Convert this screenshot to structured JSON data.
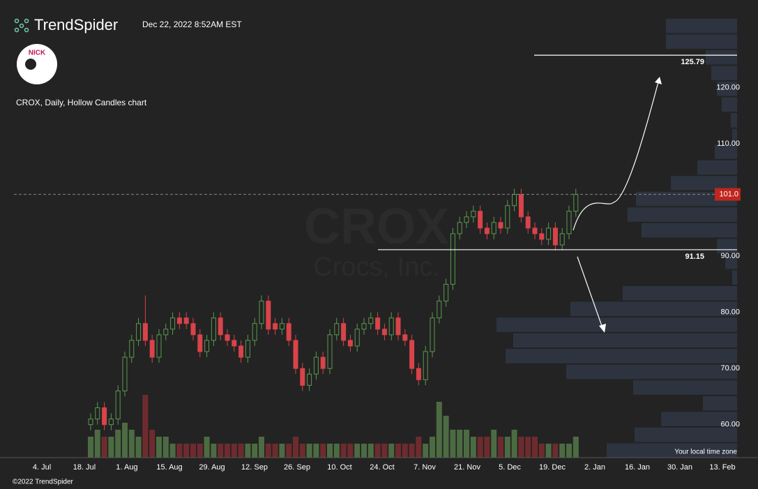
{
  "header": {
    "brand": "TrendSpider",
    "timestamp": "Dec 22, 2022 8:52AM EST",
    "logo_text": "NICK",
    "chart_label": "CROX, Daily, Hollow Candles chart",
    "timezone_note": "Your local time zone",
    "copyright": "©2022 TrendSpider"
  },
  "chart_data": {
    "type": "candlestick",
    "symbol": "CROX",
    "company": "Crocs, Inc.",
    "ylim": [
      54,
      134
    ],
    "yticks": [
      {
        "value": 60,
        "label": "60.00"
      },
      {
        "value": 70,
        "label": "70.00"
      },
      {
        "value": 80,
        "label": "80.00"
      },
      {
        "value": 90,
        "label": "90.00"
      },
      {
        "value": 110,
        "label": "110.00"
      },
      {
        "value": 120,
        "label": "120.00"
      }
    ],
    "date_labels": [
      "4. Jul",
      "18. Jul",
      "1. Aug",
      "15. Aug",
      "29. Aug",
      "12. Sep",
      "26. Sep",
      "10. Oct",
      "24. Oct",
      "7. Nov",
      "21. Nov",
      "5. Dec",
      "19. Dec",
      "2. Jan",
      "16. Jan",
      "30. Jan",
      "13. Feb"
    ],
    "up_color": "#5a9a4e",
    "down_color": "#d9434a",
    "open": [
      60,
      61,
      63,
      60,
      61,
      66,
      72,
      75,
      78,
      75,
      72,
      76,
      77,
      79,
      79,
      78,
      76,
      73,
      75,
      79,
      76,
      75,
      74,
      72,
      75,
      78,
      82,
      78,
      77,
      78,
      75,
      70,
      67,
      69,
      72,
      70,
      76,
      78,
      75,
      74,
      77,
      78,
      79,
      77,
      76,
      79,
      76,
      75,
      70,
      68,
      73,
      79,
      82,
      85,
      94,
      96,
      97,
      98,
      95,
      94,
      96,
      95,
      99,
      101,
      97,
      95,
      94,
      93,
      95,
      92,
      94,
      98
    ],
    "high": [
      62,
      64,
      64,
      62,
      67,
      73,
      76,
      79,
      83,
      76,
      77,
      78,
      80,
      80,
      80,
      79,
      77,
      76,
      80,
      80,
      77,
      76,
      75,
      76,
      79,
      83,
      83,
      79,
      79,
      79,
      76,
      71,
      70,
      73,
      73,
      77,
      79,
      79,
      76,
      78,
      79,
      80,
      80,
      78,
      80,
      80,
      77,
      76,
      71,
      74,
      80,
      83,
      86,
      95,
      97,
      98,
      99,
      99,
      96,
      97,
      97,
      100,
      102,
      102,
      98,
      96,
      95,
      96,
      96,
      95,
      99,
      102
    ],
    "low": [
      59,
      60,
      59,
      59,
      60,
      65,
      71,
      74,
      74,
      71,
      71,
      75,
      76,
      77,
      77,
      75,
      72,
      72,
      74,
      75,
      74,
      73,
      71,
      71,
      74,
      77,
      76,
      76,
      76,
      74,
      69,
      66,
      66,
      68,
      69,
      69,
      75,
      74,
      73,
      73,
      76,
      77,
      76,
      75,
      75,
      75,
      74,
      69,
      67,
      67,
      72,
      78,
      81,
      84,
      93,
      95,
      96,
      94,
      93,
      93,
      94,
      94,
      98,
      96,
      94,
      93,
      92,
      92,
      91,
      91,
      93,
      97
    ],
    "close": [
      61,
      63,
      60,
      61,
      66,
      72,
      75,
      78,
      75,
      72,
      76,
      77,
      79,
      78,
      78,
      76,
      73,
      75,
      79,
      76,
      75,
      74,
      72,
      75,
      78,
      82,
      77,
      77,
      78,
      75,
      70,
      67,
      69,
      72,
      70,
      76,
      78,
      75,
      74,
      77,
      78,
      79,
      77,
      76,
      79,
      76,
      75,
      70,
      68,
      73,
      79,
      82,
      85,
      94,
      96,
      97,
      98,
      95,
      94,
      96,
      95,
      99,
      101,
      97,
      95,
      94,
      93,
      95,
      92,
      94,
      98,
      101
    ],
    "volume": [
      3,
      4,
      3,
      3,
      4,
      5,
      4,
      3,
      9,
      4,
      3,
      3,
      2,
      2,
      2,
      2,
      2,
      3,
      2,
      2,
      2,
      2,
      2,
      2,
      2,
      3,
      2,
      2,
      2,
      2,
      3,
      2,
      2,
      2,
      2,
      2,
      2,
      2,
      2,
      2,
      2,
      2,
      2,
      2,
      2,
      2,
      2,
      2,
      3,
      2,
      3,
      8,
      6,
      4,
      4,
      4,
      3,
      3,
      3,
      4,
      3,
      3,
      4,
      3,
      3,
      3,
      2,
      2,
      2,
      2,
      2,
      3
    ],
    "volume_ylim": [
      0,
      10
    ],
    "profile_edges": [
      54.0,
      56.8,
      59.6,
      62.4,
      65.2,
      68.0,
      70.8,
      73.6,
      76.4,
      79.2,
      82.0,
      84.8,
      87.6,
      90.4,
      93.2,
      96.0,
      98.8,
      101.6,
      104.4,
      107.2,
      110.0,
      112.8,
      115.6,
      118.4,
      121.2,
      124.0,
      126.8,
      129.6,
      132.4
    ],
    "profile_sizes": [
      187,
      147,
      109,
      49,
      149,
      245,
      332,
      321,
      345,
      239,
      164,
      7,
      17,
      29,
      137,
      157,
      145,
      95,
      57,
      32,
      7,
      9,
      22,
      29,
      37,
      45,
      102,
      102
    ],
    "last_price": {
      "value": 101,
      "label": "101.0"
    },
    "levels": [
      125.79,
      91.15
    ]
  }
}
